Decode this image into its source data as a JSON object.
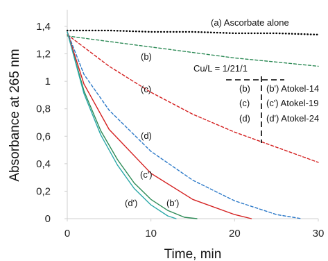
{
  "chart_data": {
    "type": "line",
    "xlabel": "Time, min",
    "ylabel": "Absorbance at 265 nm",
    "xlim": [
      0,
      30
    ],
    "ylim": [
      0,
      1.4
    ],
    "x_ticks": [
      "0",
      "10",
      "20",
      "30"
    ],
    "y_ticks": [
      "0",
      "0,2",
      "0,4",
      "0,6",
      "0,8",
      "1",
      "1,2",
      "1,4"
    ],
    "grid": false,
    "series": [
      {
        "name": "(a) Ascorbate alone",
        "color": "#000000",
        "style": "dotted",
        "x": [
          0,
          5,
          10,
          15,
          20,
          25,
          30
        ],
        "y": [
          1.37,
          1.37,
          1.36,
          1.36,
          1.35,
          1.35,
          1.34
        ]
      },
      {
        "name": "(b)",
        "color": "#2e8b57",
        "style": "dashed",
        "x": [
          0,
          5,
          10,
          15,
          20,
          25,
          30
        ],
        "y": [
          1.33,
          1.29,
          1.25,
          1.21,
          1.17,
          1.14,
          1.11
        ]
      },
      {
        "name": "(c)",
        "color": "#d42020",
        "style": "dashed",
        "x": [
          0,
          5,
          10,
          15,
          20,
          25,
          30
        ],
        "y": [
          1.34,
          1.11,
          0.92,
          0.76,
          0.63,
          0.52,
          0.41
        ]
      },
      {
        "name": "(d)",
        "color": "#2a78c8",
        "style": "dashed",
        "x": [
          0,
          2,
          5,
          10,
          15,
          20,
          25,
          28
        ],
        "y": [
          1.36,
          1.05,
          0.79,
          0.49,
          0.28,
          0.13,
          0.03,
          0.0
        ]
      },
      {
        "name": "(b')",
        "color": "#2e8b57",
        "style": "solid",
        "x": [
          0,
          2,
          4,
          6,
          8,
          10,
          12,
          14,
          15.5
        ],
        "y": [
          1.36,
          0.93,
          0.64,
          0.43,
          0.26,
          0.14,
          0.06,
          0.01,
          0.0
        ]
      },
      {
        "name": "(c')",
        "color": "#d42020",
        "style": "solid",
        "x": [
          0,
          2,
          5,
          10,
          15,
          20,
          22
        ],
        "y": [
          1.36,
          0.98,
          0.65,
          0.33,
          0.14,
          0.03,
          0.0
        ]
      },
      {
        "name": "(d')",
        "color": "#2aa8a8",
        "style": "solid",
        "x": [
          0,
          2,
          4,
          6,
          8,
          10,
          12,
          13
        ],
        "y": [
          1.36,
          0.91,
          0.61,
          0.39,
          0.22,
          0.1,
          0.02,
          0.0
        ]
      }
    ],
    "annotations": {
      "a": "(a) Ascorbate alone",
      "b": "(b)",
      "c": "(c)",
      "d": "(d)",
      "bp": "(b')",
      "cp": "(c')",
      "dp": "(d')",
      "ratio": "Cu/L = 1/21/1",
      "legend_rows": [
        {
          "left": "(b)",
          "right": "(b') Atokel-14"
        },
        {
          "left": "(c)",
          "right": "(c') Atokel-19"
        },
        {
          "left": "(d)",
          "right": "(d') Atokel-24"
        }
      ]
    }
  }
}
